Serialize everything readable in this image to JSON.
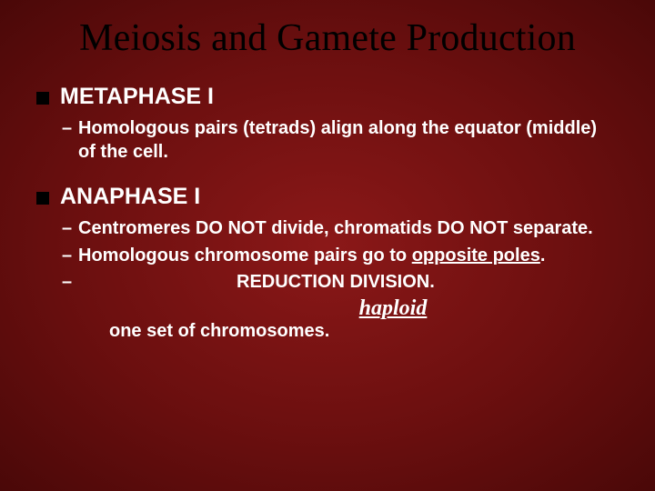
{
  "slide": {
    "title": "Meiosis and Gamete Production",
    "title_color": "#000000",
    "title_fontsize": 42,
    "title_font": "Times New Roman",
    "background_gradient": {
      "inner": "#8b1818",
      "mid": "#6b0f0f",
      "outer": "#4a0808"
    },
    "body_color": "#ffffff",
    "body_fontsize": 20,
    "bullet_color": "#000000",
    "sections": [
      {
        "heading": "METAPHASE I",
        "items": [
          {
            "text": "Homologous pairs (tetrads) align along the equator (middle) of the cell."
          }
        ]
      },
      {
        "heading": "ANAPHASE I",
        "items": [
          {
            "text": "Centromeres DO NOT divide, chromatids DO NOT separate."
          },
          {
            "prefix": "Homologous chromosome pairs go to ",
            "underline": "opposite poles",
            "suffix": "."
          },
          {
            "reduction": "REDUCTION DIVISION."
          }
        ],
        "haploid": "haploid",
        "trailing": "one set of chromosomes."
      }
    ]
  }
}
